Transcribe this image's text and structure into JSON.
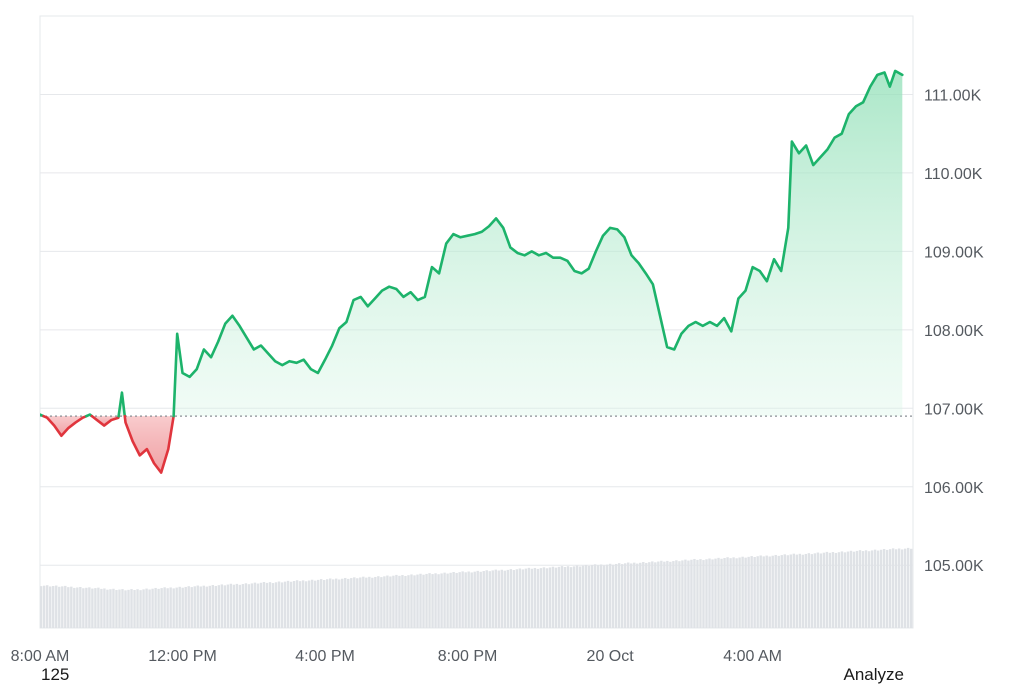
{
  "chart_data": {
    "type": "area",
    "title": "",
    "xlabel": "",
    "ylabel": "",
    "baseline": 106.9,
    "ylim": [
      104.2,
      112.0
    ],
    "y_ticks": [
      {
        "value": 111.0,
        "label": "111.00K"
      },
      {
        "value": 110.0,
        "label": "110.00K"
      },
      {
        "value": 109.0,
        "label": "109.00K"
      },
      {
        "value": 108.0,
        "label": "108.00K"
      },
      {
        "value": 107.0,
        "label": "107.00K"
      },
      {
        "value": 106.0,
        "label": "106.00K"
      },
      {
        "value": 105.0,
        "label": "105.00K"
      }
    ],
    "x_ticks": [
      {
        "value": 8,
        "label": "8:00 AM"
      },
      {
        "value": 12,
        "label": "12:00 PM"
      },
      {
        "value": 16,
        "label": "4:00 PM"
      },
      {
        "value": 20,
        "label": "8:00 PM"
      },
      {
        "value": 24,
        "label": "20 Oct"
      },
      {
        "value": 28,
        "label": "4:00 AM"
      }
    ],
    "x_range": [
      8,
      32.5
    ],
    "series": [
      {
        "values_unit": "K",
        "points": [
          [
            8.0,
            106.92
          ],
          [
            8.2,
            106.88
          ],
          [
            8.4,
            106.78
          ],
          [
            8.6,
            106.65
          ],
          [
            8.8,
            106.75
          ],
          [
            9.0,
            106.82
          ],
          [
            9.2,
            106.88
          ],
          [
            9.4,
            106.92
          ],
          [
            9.6,
            106.85
          ],
          [
            9.8,
            106.78
          ],
          [
            10.0,
            106.85
          ],
          [
            10.2,
            106.88
          ],
          [
            10.3,
            107.2
          ],
          [
            10.4,
            106.82
          ],
          [
            10.6,
            106.58
          ],
          [
            10.8,
            106.4
          ],
          [
            11.0,
            106.48
          ],
          [
            11.2,
            106.3
          ],
          [
            11.4,
            106.18
          ],
          [
            11.6,
            106.48
          ],
          [
            11.75,
            106.9
          ],
          [
            11.85,
            107.95
          ],
          [
            12.0,
            107.45
          ],
          [
            12.2,
            107.4
          ],
          [
            12.4,
            107.5
          ],
          [
            12.6,
            107.75
          ],
          [
            12.8,
            107.65
          ],
          [
            13.0,
            107.85
          ],
          [
            13.2,
            108.08
          ],
          [
            13.4,
            108.18
          ],
          [
            13.6,
            108.05
          ],
          [
            13.8,
            107.9
          ],
          [
            14.0,
            107.75
          ],
          [
            14.2,
            107.8
          ],
          [
            14.4,
            107.7
          ],
          [
            14.6,
            107.6
          ],
          [
            14.8,
            107.55
          ],
          [
            15.0,
            107.6
          ],
          [
            15.2,
            107.58
          ],
          [
            15.4,
            107.62
          ],
          [
            15.6,
            107.5
          ],
          [
            15.8,
            107.45
          ],
          [
            16.0,
            107.62
          ],
          [
            16.2,
            107.8
          ],
          [
            16.4,
            108.02
          ],
          [
            16.6,
            108.1
          ],
          [
            16.8,
            108.38
          ],
          [
            17.0,
            108.42
          ],
          [
            17.2,
            108.3
          ],
          [
            17.4,
            108.4
          ],
          [
            17.6,
            108.5
          ],
          [
            17.8,
            108.55
          ],
          [
            18.0,
            108.52
          ],
          [
            18.2,
            108.42
          ],
          [
            18.4,
            108.48
          ],
          [
            18.6,
            108.38
          ],
          [
            18.8,
            108.42
          ],
          [
            19.0,
            108.8
          ],
          [
            19.2,
            108.72
          ],
          [
            19.4,
            109.1
          ],
          [
            19.6,
            109.22
          ],
          [
            19.8,
            109.18
          ],
          [
            20.0,
            109.2
          ],
          [
            20.2,
            109.22
          ],
          [
            20.4,
            109.25
          ],
          [
            20.6,
            109.32
          ],
          [
            20.8,
            109.42
          ],
          [
            21.0,
            109.3
          ],
          [
            21.2,
            109.05
          ],
          [
            21.4,
            108.98
          ],
          [
            21.6,
            108.95
          ],
          [
            21.8,
            109.0
          ],
          [
            22.0,
            108.95
          ],
          [
            22.2,
            108.98
          ],
          [
            22.4,
            108.92
          ],
          [
            22.6,
            108.92
          ],
          [
            22.8,
            108.88
          ],
          [
            23.0,
            108.75
          ],
          [
            23.2,
            108.72
          ],
          [
            23.4,
            108.78
          ],
          [
            23.6,
            109.0
          ],
          [
            23.8,
            109.2
          ],
          [
            24.0,
            109.3
          ],
          [
            24.2,
            109.28
          ],
          [
            24.4,
            109.18
          ],
          [
            24.6,
            108.95
          ],
          [
            24.8,
            108.85
          ],
          [
            25.0,
            108.72
          ],
          [
            25.2,
            108.58
          ],
          [
            25.4,
            108.18
          ],
          [
            25.6,
            107.78
          ],
          [
            25.8,
            107.75
          ],
          [
            26.0,
            107.95
          ],
          [
            26.2,
            108.05
          ],
          [
            26.4,
            108.1
          ],
          [
            26.6,
            108.05
          ],
          [
            26.8,
            108.1
          ],
          [
            27.0,
            108.05
          ],
          [
            27.2,
            108.15
          ],
          [
            27.4,
            107.98
          ],
          [
            27.6,
            108.4
          ],
          [
            27.8,
            108.5
          ],
          [
            28.0,
            108.8
          ],
          [
            28.2,
            108.75
          ],
          [
            28.4,
            108.62
          ],
          [
            28.6,
            108.9
          ],
          [
            28.8,
            108.75
          ],
          [
            29.0,
            109.3
          ],
          [
            29.1,
            110.4
          ],
          [
            29.3,
            110.25
          ],
          [
            29.5,
            110.35
          ],
          [
            29.7,
            110.1
          ],
          [
            29.9,
            110.2
          ],
          [
            30.1,
            110.3
          ],
          [
            30.3,
            110.45
          ],
          [
            30.5,
            110.5
          ],
          [
            30.7,
            110.75
          ],
          [
            30.9,
            110.85
          ],
          [
            31.1,
            110.9
          ],
          [
            31.3,
            111.1
          ],
          [
            31.5,
            111.25
          ],
          [
            31.7,
            111.28
          ],
          [
            31.85,
            111.1
          ],
          [
            32.0,
            111.3
          ],
          [
            32.2,
            111.25
          ]
        ]
      }
    ],
    "volume": {
      "note": "background volume bars, relative height 0-1",
      "start": 0.45,
      "dip": 0.4,
      "end": 0.85
    },
    "colors": {
      "up_line": "#1db36b",
      "up_fill": "#b9ecd0",
      "down_line": "#e0353d",
      "down_fill": "#f6b6b8",
      "grid": "#e6e8eb",
      "baseline": "#8a8f96",
      "volume": "#dfe2e6"
    }
  },
  "footer": {
    "left_label": "125",
    "right_label": "Analyze"
  }
}
